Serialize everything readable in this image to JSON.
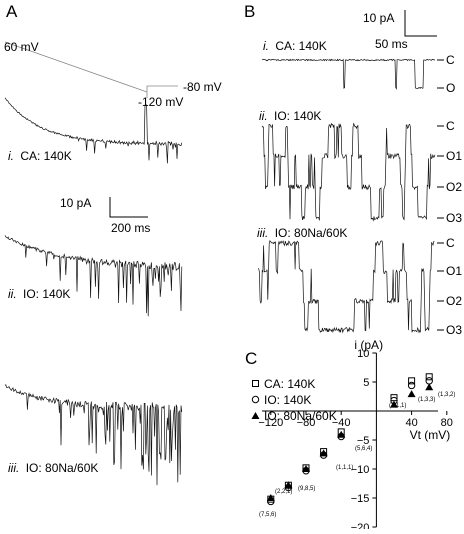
{
  "figure": {
    "panel_a": {
      "letter": "A",
      "protocol": {
        "start_label": "60 mV",
        "step_label": "-120 mV",
        "hold_label": "-80 mV"
      },
      "traces": [
        {
          "roman": "i.",
          "label": "CA: 140K"
        },
        {
          "roman": "ii.",
          "label": "IO: 140K"
        },
        {
          "roman": "iii.",
          "label": "IO: 80Na/60K"
        }
      ],
      "scale": {
        "current": "10 pA",
        "time": "200 ms"
      }
    },
    "panel_b": {
      "letter": "B",
      "scale": {
        "current": "10 pA",
        "time": "50 ms"
      },
      "traces": [
        {
          "roman": "i.",
          "label": "CA: 140K",
          "levels": [
            "C",
            "O"
          ]
        },
        {
          "roman": "ii.",
          "label": "IO: 140K",
          "levels": [
            "C",
            "O1",
            "O2",
            "O3"
          ]
        },
        {
          "roman": "iii.",
          "label": "IO: 80Na/60K",
          "levels": [
            "C",
            "O1",
            "O2",
            "O3"
          ]
        }
      ]
    },
    "panel_c": {
      "letter": "C",
      "legend": [
        "CA: 140K",
        "IO: 140K",
        "IO: 80Na/60K"
      ],
      "annotations": [
        "(2,1,1)",
        "(1,3,3)",
        "(1,3,2)",
        "(5,6,4)",
        "(1,1,1)",
        "(9,8,5)",
        "(2,2,1)",
        "(7,5,6)"
      ]
    }
  },
  "chart_data": {
    "type": "scatter",
    "title": "",
    "xlabel": "Vt (mV)",
    "ylabel": "i (pA)",
    "xlim": [
      -130,
      70
    ],
    "ylim": [
      -20,
      10
    ],
    "x_ticks": [
      -120,
      -80,
      -40,
      40,
      80
    ],
    "y_ticks": [
      -20,
      -15,
      -10,
      -5,
      5,
      10
    ],
    "legend_position": "top-left",
    "series": [
      {
        "name": "CA: 140K",
        "marker": "square",
        "points": [
          [
            -120,
            -15.2
          ],
          [
            -100,
            -12.8
          ],
          [
            -80,
            -9.8
          ],
          [
            -60,
            -7.0
          ],
          [
            -40,
            -3.6
          ],
          [
            20,
            2.3
          ],
          [
            40,
            5.2
          ],
          [
            60,
            5.9
          ]
        ]
      },
      {
        "name": "IO: 140K",
        "marker": "circle",
        "points": [
          [
            -120,
            -15.6
          ],
          [
            -100,
            -13.2
          ],
          [
            -80,
            -10.3
          ],
          [
            -60,
            -7.6
          ],
          [
            -40,
            -4.4
          ],
          [
            20,
            1.8
          ],
          [
            40,
            4.4
          ],
          [
            60,
            5.2
          ]
        ]
      },
      {
        "name": "IO: 80Na/60K",
        "marker": "triangle",
        "points": [
          [
            -120,
            -15.0
          ],
          [
            -100,
            -12.8
          ],
          [
            -80,
            -10.0
          ],
          [
            -60,
            -7.3
          ],
          [
            -40,
            -4.1
          ],
          [
            20,
            1.1
          ],
          [
            40,
            2.9
          ],
          [
            60,
            4.1
          ]
        ]
      }
    ]
  }
}
